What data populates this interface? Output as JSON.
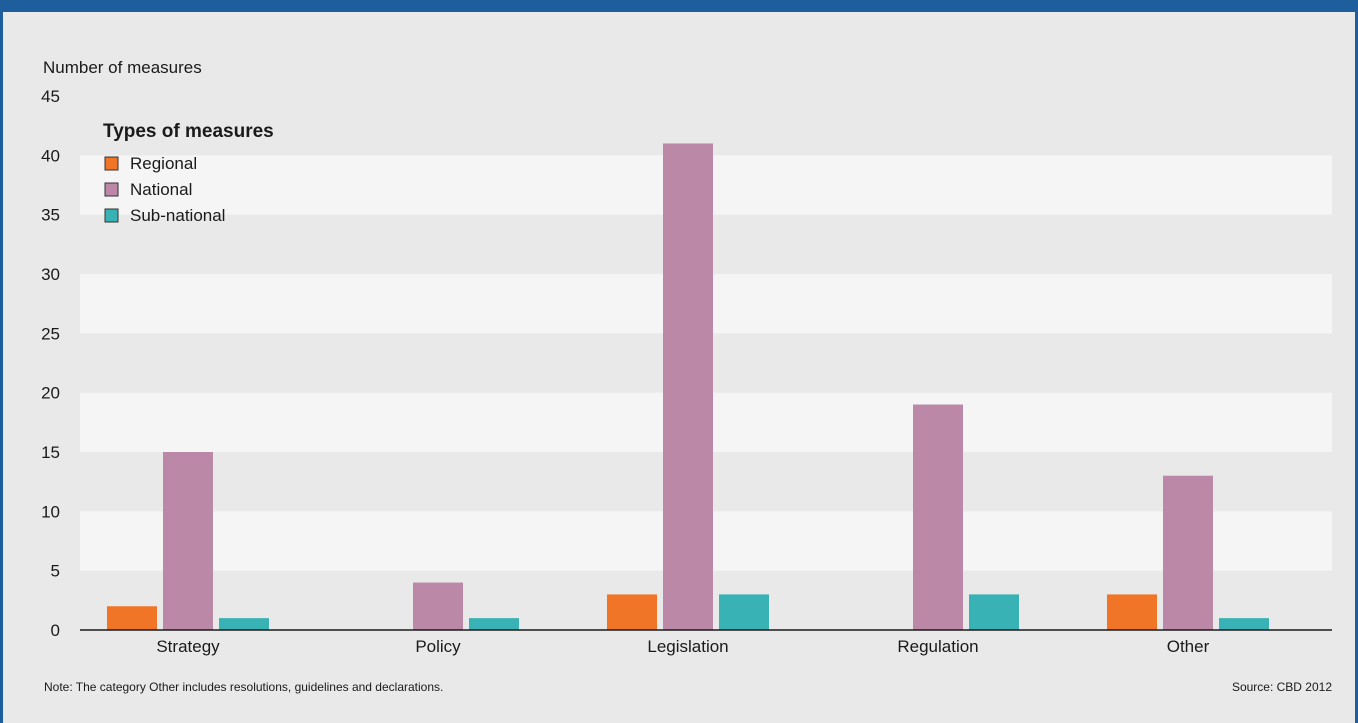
{
  "chart_data": {
    "type": "bar",
    "ylabel": "Number of measures",
    "xlabel": "",
    "ylim": [
      0,
      45
    ],
    "yticks": [
      0,
      5,
      10,
      15,
      20,
      25,
      30,
      35,
      40,
      45
    ],
    "categories": [
      "Strategy",
      "Policy",
      "Legislation",
      "Regulation",
      "Other"
    ],
    "legend_title": "Types of measures",
    "legend_position": "top-left",
    "grid": "alternating horizontal bands",
    "series": [
      {
        "name": "Regional",
        "color": "#f07526",
        "values": [
          2,
          0,
          3,
          0,
          3
        ]
      },
      {
        "name": "National",
        "color": "#bc88a8",
        "values": [
          15,
          4,
          41,
          19,
          13
        ]
      },
      {
        "name": "Sub-national",
        "color": "#38b2b4",
        "values": [
          1,
          1,
          3,
          3,
          1
        ]
      }
    ]
  },
  "footer": {
    "note": "Note: The category Other includes resolutions, guidelines and declarations.",
    "source": "Source: CBD 2012"
  },
  "colors": {
    "frame": "#1f5e9c",
    "background": "#e9e9e9",
    "band": "#f5f5f5"
  }
}
